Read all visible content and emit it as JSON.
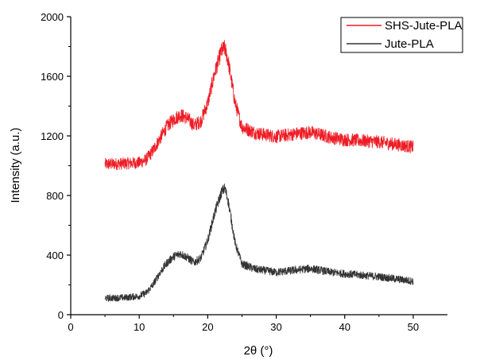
{
  "chart_data": {
    "type": "line",
    "xlabel": "2θ (°)",
    "ylabel": "Intensity (a.u.)",
    "xlim": [
      0,
      55
    ],
    "ylim": [
      0,
      2000
    ],
    "x_ticks": [
      0,
      10,
      20,
      30,
      40,
      50
    ],
    "y_ticks": [
      0,
      400,
      800,
      1200,
      1600,
      2000
    ],
    "grid": false,
    "legend_position": "top-right",
    "series": [
      {
        "name": "SHS-Jute-PLA",
        "color": "#ee1c25",
        "x": [
          5,
          8,
          10,
          11,
          12,
          13,
          14,
          15,
          16,
          17,
          18,
          19,
          20,
          21,
          22,
          22.5,
          23,
          24,
          25,
          27,
          30,
          33,
          35,
          38,
          40,
          45,
          50
        ],
        "y": [
          1010,
          1015,
          1020,
          1040,
          1100,
          1180,
          1260,
          1310,
          1340,
          1320,
          1270,
          1300,
          1420,
          1620,
          1770,
          1790,
          1700,
          1420,
          1260,
          1220,
          1195,
          1215,
          1225,
          1190,
          1175,
          1160,
          1125
        ]
      },
      {
        "name": "Jute-PLA",
        "color": "#333333",
        "x": [
          5,
          8,
          10,
          11,
          12,
          13,
          14,
          15,
          16,
          17,
          18,
          19,
          20,
          21,
          22,
          22.5,
          23,
          24,
          25,
          27,
          30,
          33,
          35,
          38,
          40,
          45,
          50
        ],
        "y": [
          110,
          115,
          125,
          145,
          200,
          280,
          345,
          390,
          410,
          385,
          350,
          380,
          500,
          680,
          820,
          850,
          760,
          480,
          340,
          305,
          285,
          300,
          310,
          285,
          275,
          255,
          225
        ]
      }
    ]
  }
}
